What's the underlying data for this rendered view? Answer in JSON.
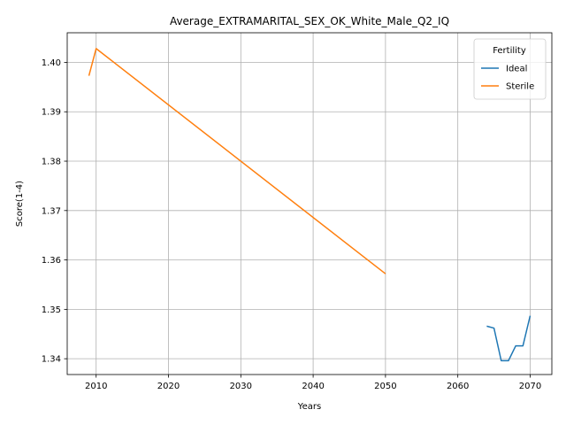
{
  "chart_data": {
    "type": "line",
    "title": "Average_EXTRAMARITAL_SEX_OK_White_Male_Q2_IQ",
    "xlabel": "Years",
    "ylabel": "Score(1-4)",
    "xlim": [
      2006,
      2073
    ],
    "ylim": [
      1.3368,
      1.406
    ],
    "xticks": [
      2010,
      2020,
      2030,
      2040,
      2050,
      2060,
      2070
    ],
    "yticks": [
      1.34,
      1.35,
      1.36,
      1.37,
      1.38,
      1.39,
      1.4
    ],
    "ytick_labels": [
      "1.34",
      "1.35",
      "1.36",
      "1.37",
      "1.38",
      "1.39",
      "1.40"
    ],
    "grid": true,
    "legend": {
      "title": "Fertility",
      "placement": "top-right"
    },
    "series": [
      {
        "name": "Ideal",
        "color": "#1f77b4",
        "x": [
          2064,
          2065,
          2066,
          2067,
          2068,
          2069,
          2070
        ],
        "y": [
          1.3466,
          1.3462,
          1.3396,
          1.3396,
          1.3426,
          1.3426,
          1.3487
        ]
      },
      {
        "name": "Sterile",
        "color": "#ff7f0e",
        "x": [
          2009,
          2010,
          2050
        ],
        "y": [
          1.3973,
          1.4028,
          1.3572
        ]
      }
    ]
  }
}
